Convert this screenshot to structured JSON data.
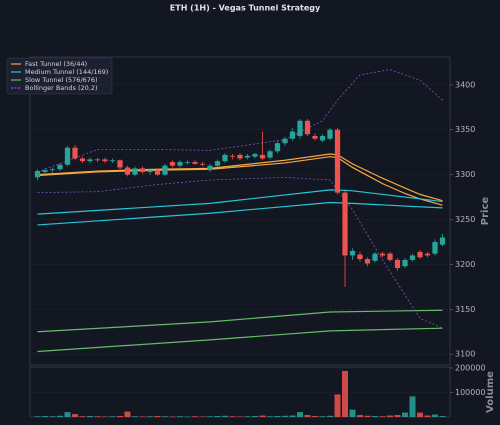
{
  "chart_data": [
    {
      "type": "candlestick",
      "title": "ETH (1H) - Vegas Tunnel Strategy",
      "y_label": "Price",
      "open": [
        3297,
        3303,
        3305,
        3306,
        3311,
        3330,
        3318,
        3315,
        3317,
        3317,
        3315,
        3316,
        3308,
        3300,
        3307,
        3303,
        3305,
        3300,
        3314,
        3310,
        3313,
        3314,
        3312,
        3305,
        3310,
        3315,
        3321,
        3322,
        3319,
        3320,
        3322,
        3319,
        3326,
        3335,
        3340,
        3343,
        3360,
        3343,
        3338,
        3340,
        3350,
        3280,
        3210,
        3211,
        3206,
        3204,
        3212,
        3212,
        3205,
        3198,
        3205,
        3214,
        3212,
        3212,
        3222
      ],
      "high": [
        3306,
        3307,
        3308,
        3313,
        3332,
        3333,
        3320,
        3319,
        3319,
        3319,
        3318,
        3317,
        3310,
        3309,
        3309,
        3307,
        3307,
        3312,
        3316,
        3316,
        3316,
        3316,
        3314,
        3312,
        3317,
        3324,
        3323,
        3324,
        3323,
        3324,
        3348,
        3328,
        3337,
        3342,
        3352,
        3362,
        3362,
        3346,
        3345,
        3352,
        3352,
        3284,
        3218,
        3214,
        3208,
        3214,
        3214,
        3214,
        3207,
        3207,
        3212,
        3216,
        3214,
        3228,
        3234
      ],
      "low": [
        3294,
        3300,
        3302,
        3304,
        3309,
        3316,
        3313,
        3313,
        3314,
        3313,
        3313,
        3306,
        3298,
        3298,
        3301,
        3300,
        3298,
        3299,
        3308,
        3308,
        3311,
        3311,
        3309,
        3303,
        3308,
        3313,
        3317,
        3316,
        3317,
        3318,
        3316,
        3317,
        3324,
        3332,
        3338,
        3340,
        3343,
        3338,
        3336,
        3338,
        3278,
        3175,
        3205,
        3203,
        3198,
        3202,
        3208,
        3203,
        3193,
        3196,
        3203,
        3206,
        3208,
        3210,
        3220
      ],
      "close": [
        3304,
        3305,
        3306,
        3311,
        3330,
        3318,
        3315,
        3317,
        3316,
        3315,
        3316,
        3308,
        3300,
        3307,
        3303,
        3305,
        3300,
        3310,
        3310,
        3314,
        3314,
        3312,
        3311,
        3310,
        3315,
        3322,
        3320,
        3318,
        3321,
        3323,
        3318,
        3326,
        3335,
        3340,
        3348,
        3360,
        3345,
        3340,
        3343,
        3350,
        3280,
        3210,
        3215,
        3206,
        3201,
        3212,
        3210,
        3205,
        3196,
        3205,
        3210,
        3208,
        3210,
        3225,
        3230
      ],
      "up_color": "#26a69a",
      "down_color": "#ef5350",
      "ylim": [
        3088,
        3431
      ],
      "yticks": [
        3100,
        3150,
        3200,
        3250,
        3300,
        3350,
        3400
      ],
      "grid": true,
      "legend": "upper left",
      "series": [
        {
          "name": "Fast Tunnel (36/44)",
          "color": "#f5a742",
          "dashed": false,
          "x": [
            0,
            8,
            16,
            23,
            33,
            39,
            40,
            42,
            46,
            49,
            51,
            54
          ],
          "upper": [
            3300,
            3304,
            3306,
            3307,
            3316,
            3323,
            3322,
            3312,
            3296,
            3285,
            3278,
            3271
          ],
          "lower": [
            3299,
            3303,
            3305,
            3306,
            3313,
            3320,
            3319,
            3308,
            3290,
            3279,
            3273,
            3266
          ]
        },
        {
          "name": "Medium Tunnel (144/169)",
          "color": "#26c6da",
          "dashed": false,
          "x": [
            0,
            23,
            39,
            42,
            49,
            54
          ],
          "upper": [
            3256,
            3268,
            3283,
            3282,
            3275,
            3270
          ],
          "lower": [
            3244,
            3257,
            3269,
            3268,
            3265,
            3263
          ]
        },
        {
          "name": "Slow Tunnel (576/676)",
          "color": "#66bb6a",
          "dashed": false,
          "x": [
            0,
            23,
            39,
            54
          ],
          "upper": [
            3125,
            3136,
            3147,
            3149
          ],
          "lower": [
            3103,
            3116,
            3126,
            3129
          ]
        },
        {
          "name": "Bollinger Bands (20,2)",
          "color": "#7e57c2",
          "dashed": true,
          "x": [
            0,
            8,
            16,
            23,
            33,
            38,
            40,
            43,
            47,
            51,
            54
          ],
          "upper": [
            3303,
            3328,
            3328,
            3327,
            3339,
            3360,
            3383,
            3411,
            3417,
            3405,
            3383
          ],
          "x_lower": [
            0,
            8,
            16,
            23,
            33,
            39,
            42,
            46,
            49,
            51,
            54
          ],
          "lower": [
            3280,
            3281,
            3289,
            3294,
            3297,
            3294,
            3261,
            3205,
            3166,
            3140,
            3129
          ]
        }
      ]
    },
    {
      "type": "bar",
      "y_label": "Volume",
      "values": [
        3000,
        4000,
        3000,
        5000,
        20000,
        12000,
        3000,
        4000,
        3000,
        2000,
        3000,
        4000,
        22000,
        3000,
        2000,
        3000,
        4000,
        3000,
        2000,
        3000,
        2000,
        3000,
        2000,
        3000,
        4000,
        5000,
        3000,
        2000,
        3000,
        4000,
        6000,
        3000,
        4000,
        5000,
        6000,
        20000,
        8000,
        4000,
        3000,
        5000,
        92000,
        188000,
        30000,
        8000,
        5000,
        4000,
        3000,
        6000,
        8000,
        18000,
        84000,
        18000,
        6000,
        10000,
        4000
      ],
      "ylim": [
        0,
        204000
      ],
      "yticks": [
        100000,
        200000
      ],
      "grid": true
    }
  ]
}
